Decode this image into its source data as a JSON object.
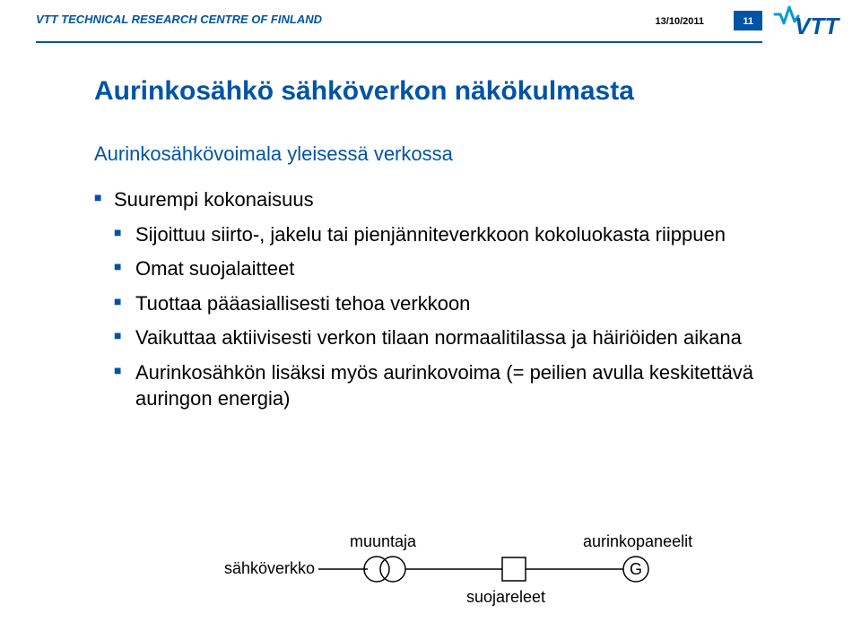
{
  "colors": {
    "vtt_blue": "#0054a6",
    "accent_blue": "#0099d8",
    "text_black": "#000000",
    "white": "#ffffff"
  },
  "header": {
    "org": "VTT TECHNICAL RESEARCH CENTRE OF FINLAND",
    "date": "13/10/2011",
    "page": "11"
  },
  "slide": {
    "title": "Aurinkosähkö sähköverkon näkökulmasta",
    "subtitle": "Aurinkosähkövoimala yleisessä verkossa",
    "bullets": [
      {
        "text": "Suurempi kokonaisuus",
        "children": [
          {
            "text": "Sijoittuu siirto-, jakelu tai pienjänniteverkkoon kokoluokasta riippuen"
          },
          {
            "text": "Omat suojalaitteet"
          },
          {
            "text": "Tuottaa pääasiallisesti tehoa verkkoon"
          },
          {
            "text": "Vaikuttaa aktiivisesti verkon tilaan normaalitilassa ja häiriöiden aikana"
          },
          {
            "text": "Aurinkosähkön lisäksi myös aurinkovoima (= peilien avulla keskitettävä auringon energia)"
          }
        ]
      }
    ]
  },
  "diagram": {
    "labels": {
      "grid": "sähköverkko",
      "transformer": "muuntaja",
      "protection": "suojareleet",
      "panels": "aurinkopaneelit",
      "gen": "G"
    },
    "stroke": "#000000",
    "stroke_width": 1.5
  }
}
